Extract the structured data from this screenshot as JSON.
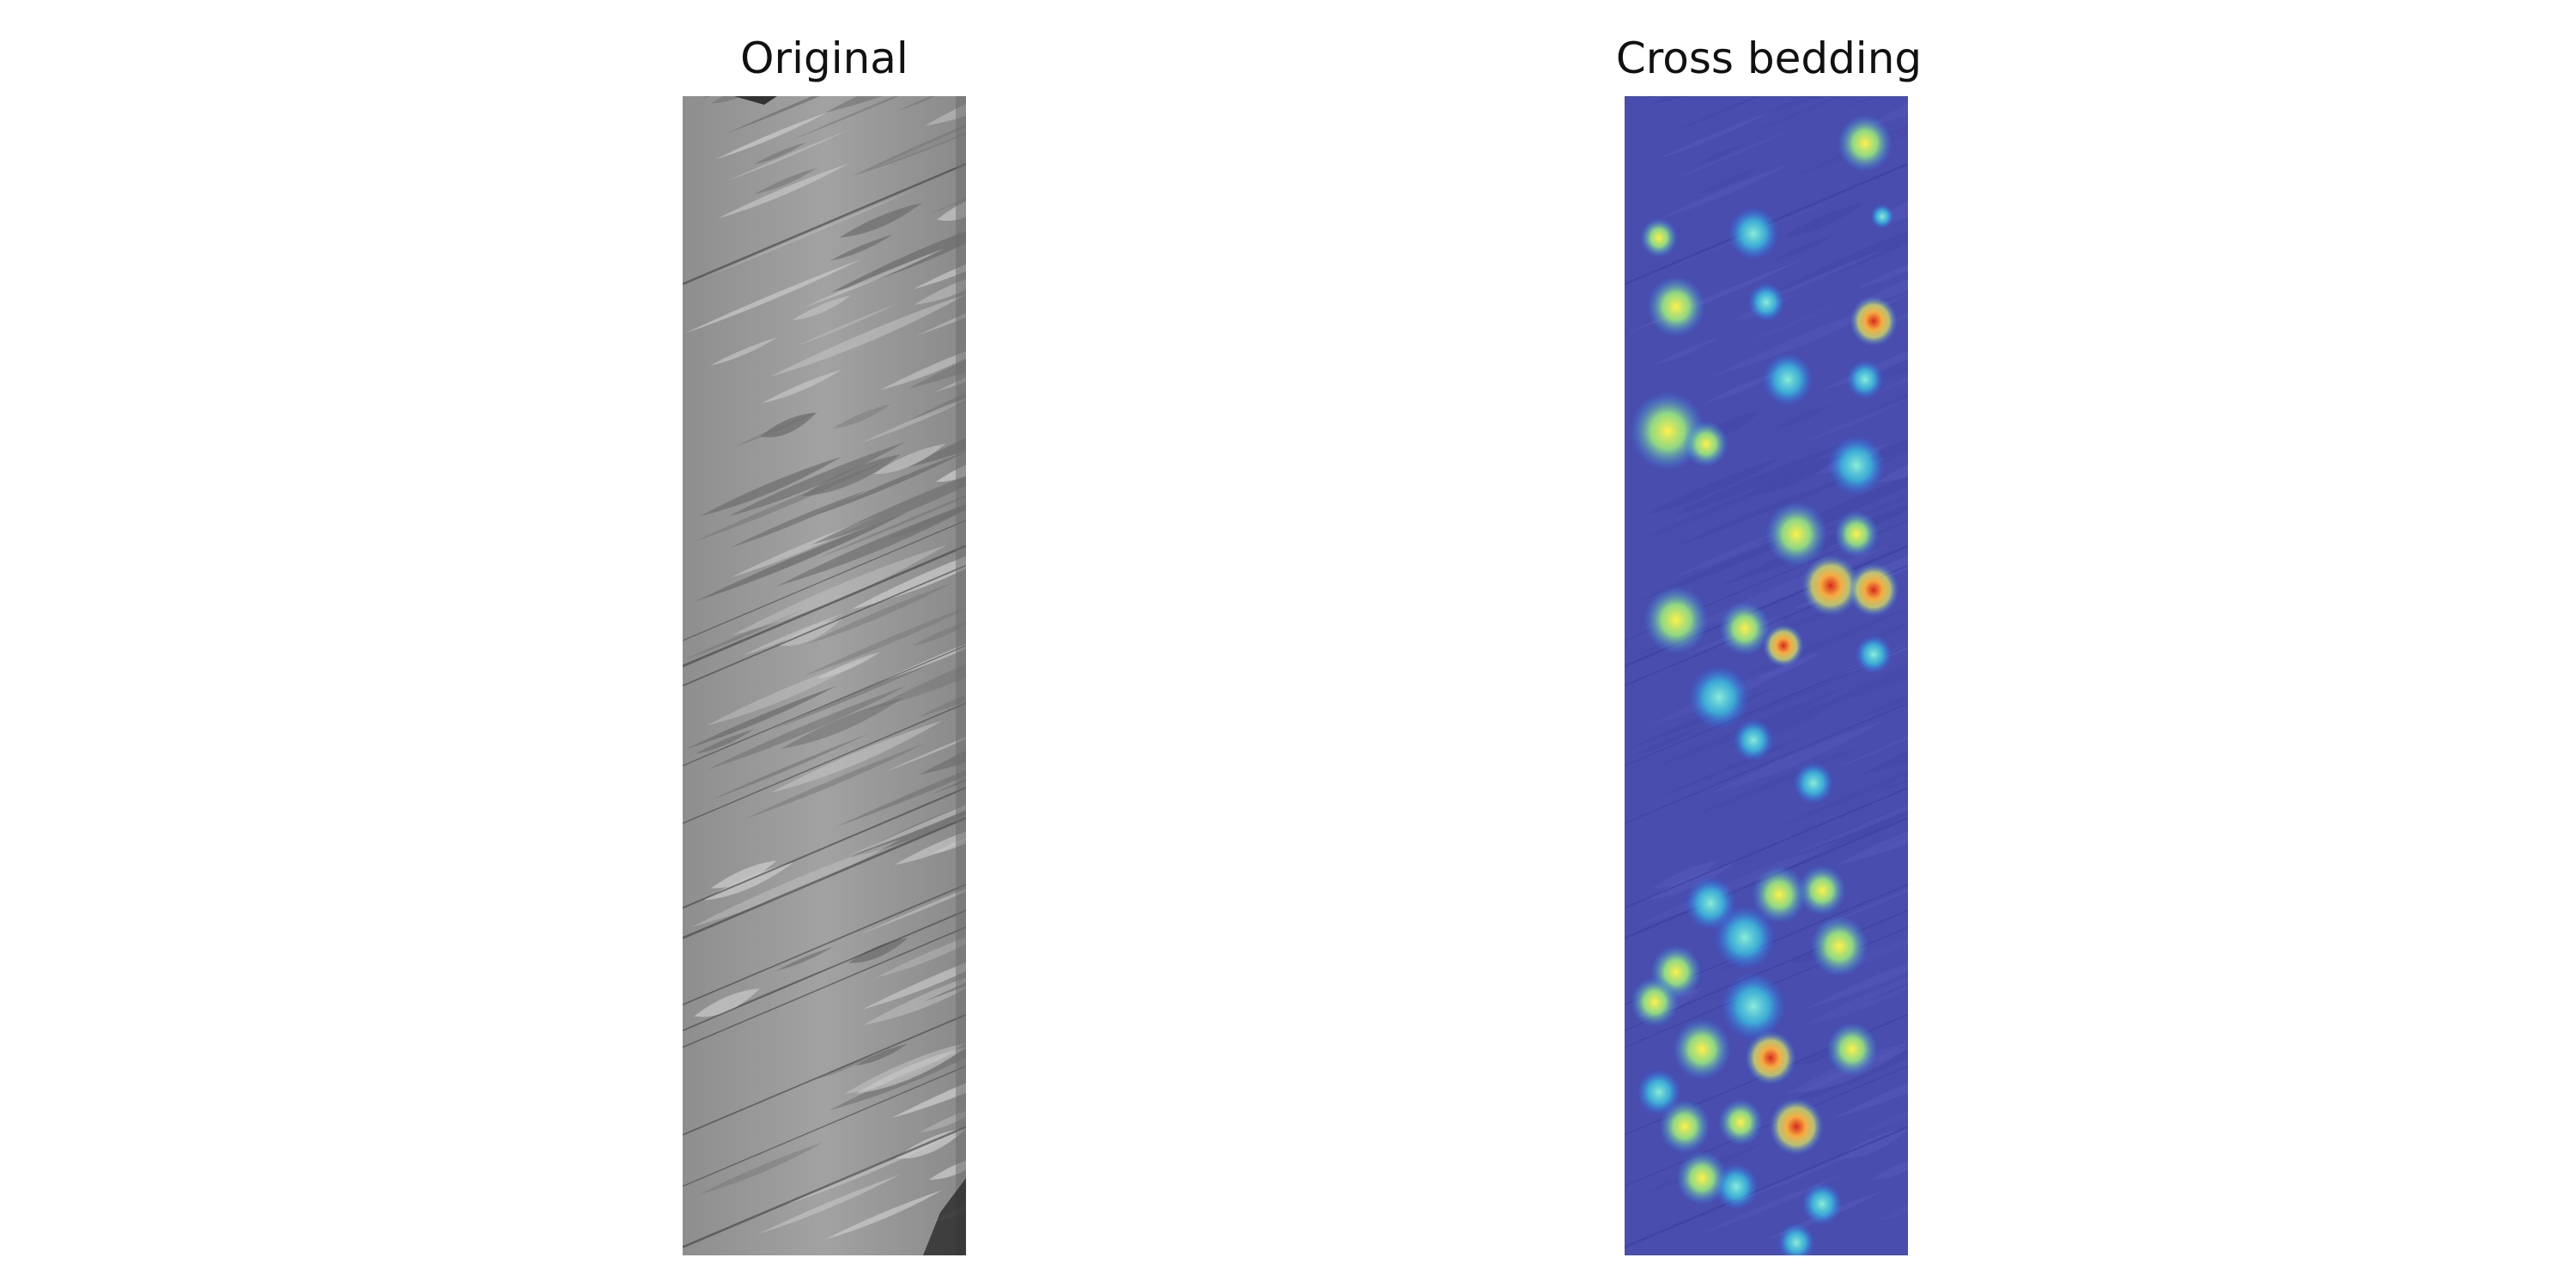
{
  "panels": [
    {
      "id": "original",
      "title": "Original"
    },
    {
      "id": "cross-bedding",
      "title": "Cross bedding"
    }
  ],
  "colors": {
    "rock_base": "#9a9a9a",
    "overlay_base": "#3a3fb4",
    "heat_low": "#2a6bff",
    "heat_mid": "#37e0d0",
    "heat_high": "#ffe04a",
    "heat_peak": "#d8281e"
  }
}
